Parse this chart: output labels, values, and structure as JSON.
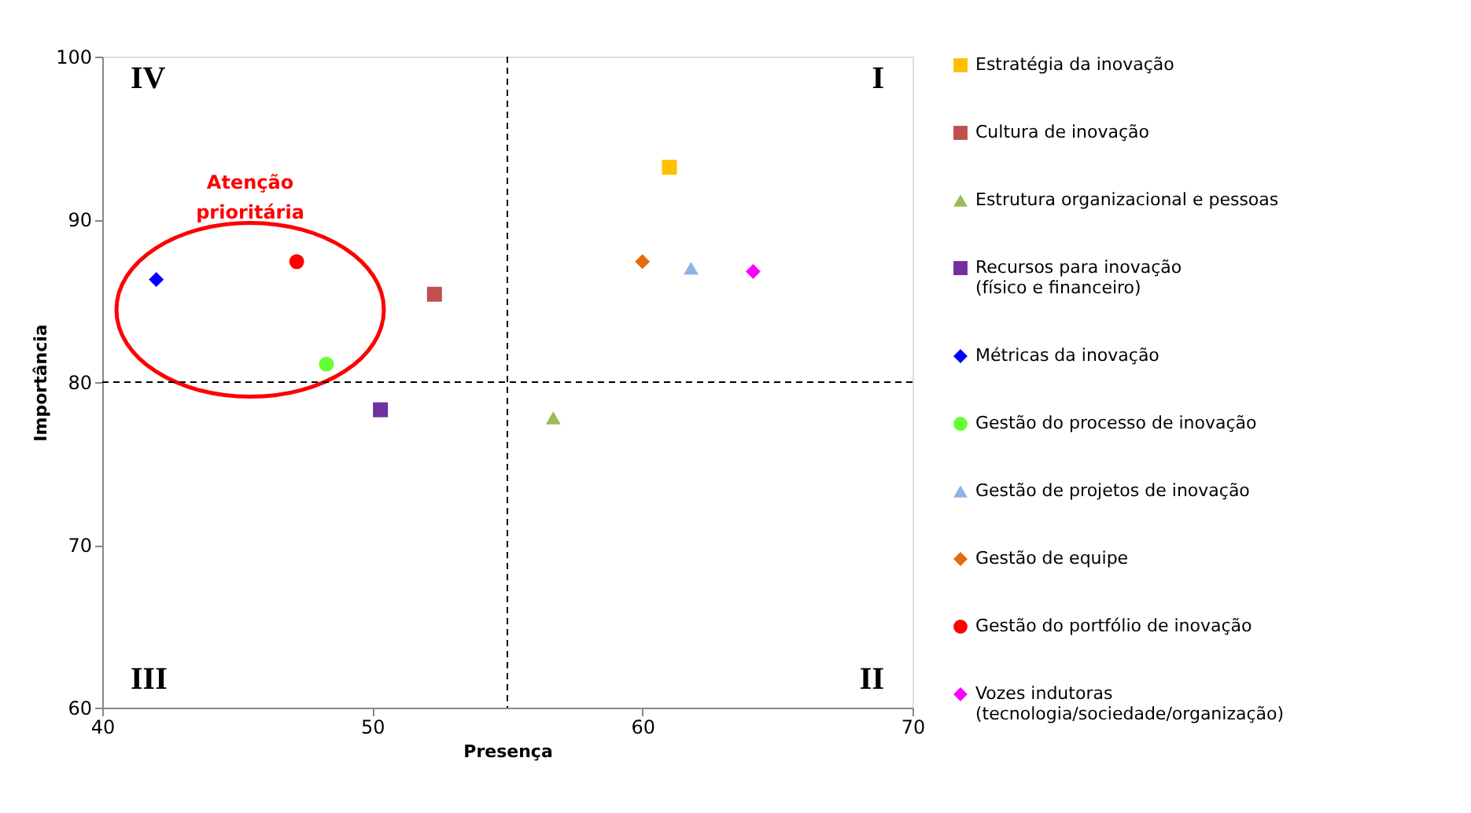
{
  "chart_data": {
    "type": "scatter",
    "xlabel": "Presença",
    "ylabel": "Importância",
    "xlim": [
      40,
      70
    ],
    "xticks": [
      40,
      50,
      60,
      70
    ],
    "ylim": [
      60,
      100
    ],
    "yticks": [
      60,
      70,
      80,
      90,
      100
    ],
    "grid": false,
    "legend": "right",
    "series": [
      {
        "name": "Estratégia da inovação",
        "color": "#ffc000",
        "marker": "square",
        "x": [
          61.0
        ],
        "values": [
          93.2
        ]
      },
      {
        "name": "Cultura de inovação",
        "color": "#c0504d",
        "marker": "square",
        "x": [
          52.3
        ],
        "values": [
          85.4
        ]
      },
      {
        "name": "Estrutura organizacional  e pessoas",
        "color": "#9bbb59",
        "marker": "triangle",
        "x": [
          56.7
        ],
        "values": [
          77.8
        ]
      },
      {
        "name": "Recursos para inovação (físico e financeiro)",
        "color": "#7030a0",
        "marker": "square",
        "x": [
          50.3
        ],
        "values": [
          78.3
        ]
      },
      {
        "name": "Métricas da inovação",
        "color": "#0000ff",
        "marker": "diamond",
        "x": [
          42.0
        ],
        "values": [
          86.3
        ]
      },
      {
        "name": "Gestão do processo de inovação",
        "color": "#66ff33",
        "marker": "circle",
        "x": [
          48.3
        ],
        "values": [
          81.1
        ]
      },
      {
        "name": "Gestão de projetos de inovação",
        "color": "#8eb4e3",
        "marker": "triangle",
        "x": [
          61.8
        ],
        "values": [
          87.0
        ]
      },
      {
        "name": "Gestão de equipe",
        "color": "#e46c0a",
        "marker": "diamond",
        "x": [
          60.0
        ],
        "values": [
          87.4
        ]
      },
      {
        "name": "Gestão do portfólio de inovação",
        "color": "#ff0000",
        "marker": "circle",
        "x": [
          47.2
        ],
        "values": [
          87.4
        ]
      },
      {
        "name": "Vozes indutoras (tecnologia/sociedade/organização)",
        "color": "#ff00ff",
        "marker": "diamond",
        "x": [
          64.1
        ],
        "values": [
          86.8
        ]
      }
    ],
    "ref_lines": [
      {
        "axis": "x",
        "value": 55,
        "color": "#000000",
        "line_style": "dashed"
      },
      {
        "axis": "y",
        "value": 80,
        "color": "#000000",
        "line_style": "dashed"
      }
    ],
    "annotations": [
      "IV",
      "I",
      "III",
      "II",
      "Atenção prioritária"
    ]
  }
}
